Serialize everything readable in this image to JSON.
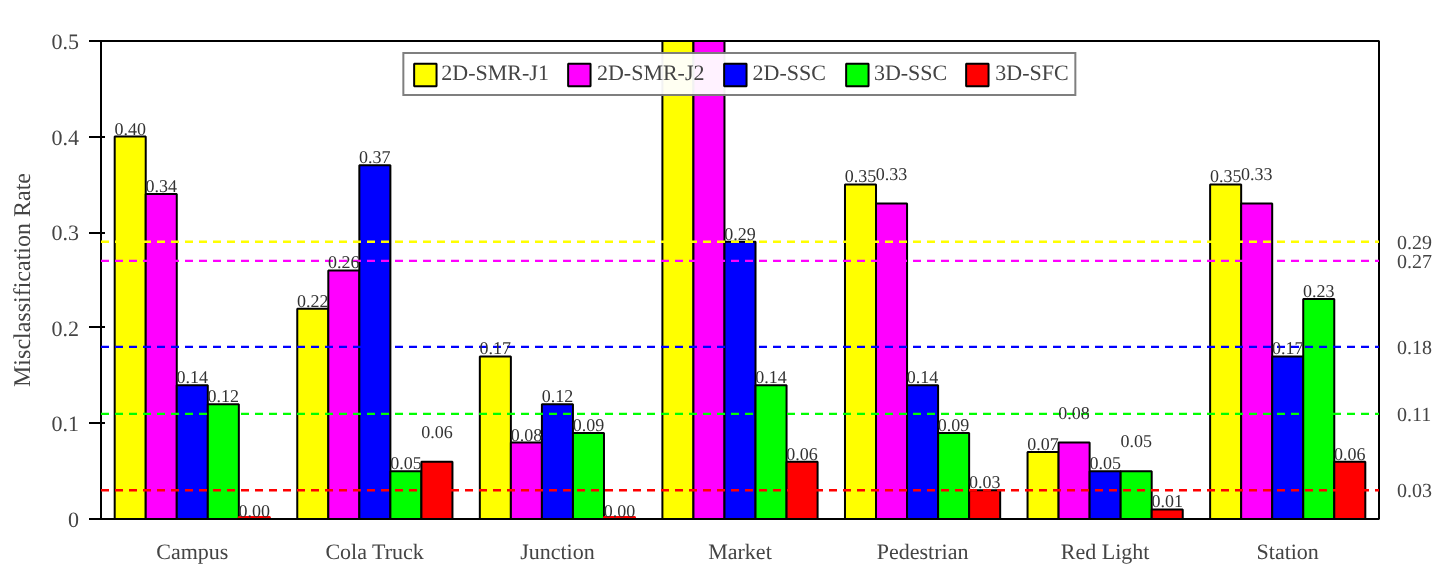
{
  "chart_data": {
    "type": "bar",
    "ylabel": "Misclassification Rate",
    "categories": [
      "Campus",
      "Cola Truck",
      "Junction",
      "Market",
      "Pedestrian",
      "Red Light",
      "Station"
    ],
    "series": [
      {
        "name": "2D-SMR-J1",
        "color": "#ffff00",
        "values": [
          0.4,
          0.22,
          0.17,
          0.5,
          0.35,
          0.07,
          0.35
        ],
        "value_labels": [
          "0.40",
          "0.22",
          "0.17",
          null,
          "0.35",
          "0.07",
          "0.35"
        ]
      },
      {
        "name": "2D-SMR-J2",
        "color": "#ff00ff",
        "values": [
          0.34,
          0.26,
          0.08,
          0.5,
          0.33,
          0.08,
          0.33
        ],
        "value_labels": [
          "0.34",
          "0.26",
          "0.08",
          null,
          "0.33",
          "0.08",
          "0.33"
        ]
      },
      {
        "name": "2D-SSC",
        "color": "#0000ff",
        "values": [
          0.14,
          0.37,
          0.12,
          0.29,
          0.14,
          0.05,
          0.17
        ],
        "value_labels": [
          "0.14",
          "0.37",
          "0.12",
          "0.29",
          "0.14",
          "0.05",
          "0.17"
        ]
      },
      {
        "name": "3D-SSC",
        "color": "#00ff00",
        "values": [
          0.12,
          0.05,
          0.09,
          0.14,
          0.09,
          0.05,
          0.23
        ],
        "value_labels": [
          "0.12",
          "0.05",
          "0.09",
          "0.14",
          "0.09",
          "0.05",
          "0.23"
        ]
      },
      {
        "name": "3D-SFC",
        "color": "#ff0000",
        "values": [
          0.0,
          0.06,
          0.0,
          0.06,
          0.03,
          0.01,
          0.06
        ],
        "value_labels": [
          "0.00",
          "0.06",
          "0.00",
          "0.06",
          "0.03",
          "0.01",
          "0.06"
        ]
      }
    ],
    "ylim": [
      0,
      0.5
    ],
    "yticks": [
      0,
      0.1,
      0.2,
      0.3,
      0.4,
      0.5
    ],
    "ref_lines": [
      {
        "axis": "y",
        "value": 0.29,
        "label": "0.29",
        "color": "#ffff00",
        "line_style": "dashed"
      },
      {
        "axis": "y",
        "value": 0.27,
        "label": "0.27",
        "color": "#ff00ff",
        "line_style": "dashed"
      },
      {
        "axis": "y",
        "value": 0.18,
        "label": "0.18",
        "color": "#0000ff",
        "line_style": "dashed"
      },
      {
        "axis": "y",
        "value": 0.11,
        "label": "0.11",
        "color": "#00ff00",
        "line_style": "dashed"
      },
      {
        "axis": "y",
        "value": 0.03,
        "label": "0.03",
        "color": "#ff0000",
        "line_style": "dashed"
      }
    ],
    "legend": "top",
    "grid": false
  }
}
